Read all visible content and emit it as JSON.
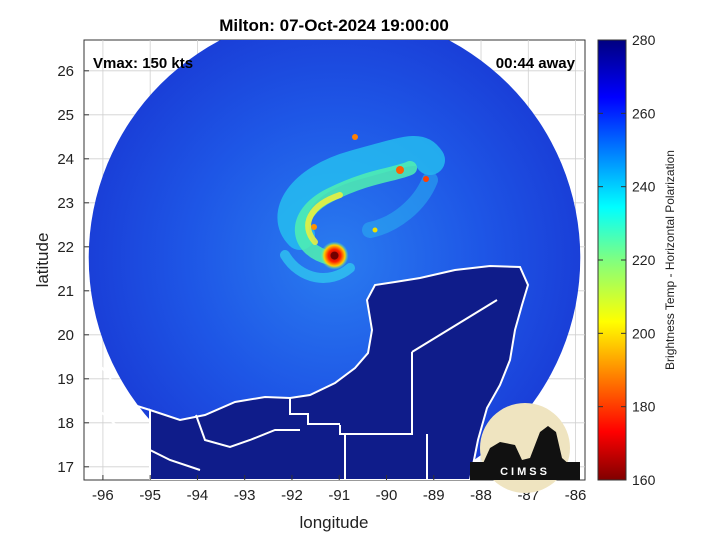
{
  "chart_data": {
    "type": "heatmap",
    "title": "Milton: 07-Oct-2024 19:00:00",
    "xlabel": "longitude",
    "ylabel": "latitude",
    "xlim": [
      -96.4,
      -85.8
    ],
    "ylim": [
      16.7,
      26.7
    ],
    "x_ticks": [
      -96,
      -95,
      -94,
      -93,
      -92,
      -91,
      -90,
      -89,
      -88,
      -87,
      -86
    ],
    "y_ticks": [
      17,
      18,
      19,
      20,
      21,
      22,
      23,
      24,
      25,
      26
    ],
    "grid": true,
    "colorbar": {
      "label": "Brightness Temp - Horizontal Polarization",
      "range": [
        160,
        280
      ],
      "ticks": [
        160,
        180,
        200,
        220,
        240,
        260,
        280
      ],
      "colormap": "jet"
    },
    "annotations": {
      "vmax": "Vmax: 150 kts",
      "time_away": "00:44 away"
    },
    "storm_center": {
      "lon": -91.1,
      "lat": 21.8
    },
    "swath": {
      "center_lon": -91.1,
      "center_lat": 21.75,
      "radius_deg": 5.2
    },
    "logo_text": "CIMSS"
  },
  "colors": {
    "background_cold": "#1a3fd8",
    "land": "#0f1c8a",
    "coast": "#ffffff",
    "eye": "#8b0000"
  }
}
